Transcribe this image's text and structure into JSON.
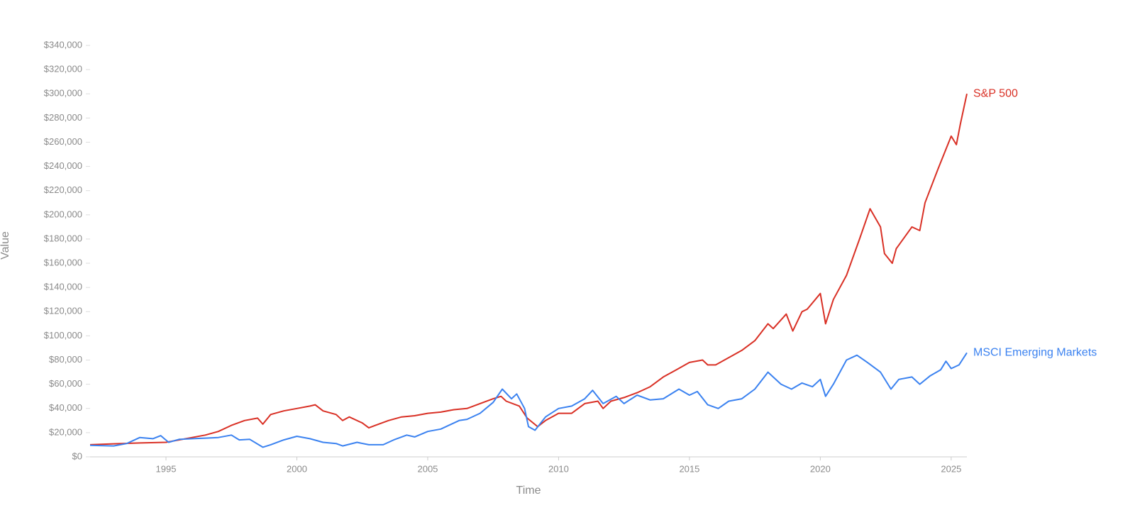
{
  "chart_data": {
    "type": "line",
    "x_label": "Time",
    "y_label": "Value",
    "xlim": [
      1992.1,
      2025.6
    ],
    "ylim": [
      0,
      340000
    ],
    "xticks": [
      1995,
      2000,
      2005,
      2010,
      2015,
      2020,
      2025
    ],
    "yticks": [
      {
        "value": 0,
        "label": "$0"
      },
      {
        "value": 20000,
        "label": "$20,000"
      },
      {
        "value": 40000,
        "label": "$40,000"
      },
      {
        "value": 60000,
        "label": "$60,000"
      },
      {
        "value": 80000,
        "label": "$80,000"
      },
      {
        "value": 100000,
        "label": "$100,000"
      },
      {
        "value": 120000,
        "label": "$120,000"
      },
      {
        "value": 140000,
        "label": "$140,000"
      },
      {
        "value": 160000,
        "label": "$160,000"
      },
      {
        "value": 180000,
        "label": "$180,000"
      },
      {
        "value": 200000,
        "label": "$200,000"
      },
      {
        "value": 220000,
        "label": "$220,000"
      },
      {
        "value": 240000,
        "label": "$240,000"
      },
      {
        "value": 260000,
        "label": "$260,000"
      },
      {
        "value": 280000,
        "label": "$280,000"
      },
      {
        "value": 300000,
        "label": "$300,000"
      },
      {
        "value": 320000,
        "label": "$320,000"
      },
      {
        "value": 340000,
        "label": "$340,000"
      }
    ],
    "grid": false,
    "series": [
      {
        "name": "S&P 500",
        "color": "#d93025",
        "x": [
          1992.1,
          1993,
          1994,
          1995,
          1995.5,
          1996,
          1996.5,
          1997,
          1997.5,
          1998,
          1998.5,
          1998.7,
          1999,
          1999.5,
          2000,
          2000.5,
          2000.7,
          2001,
          2001.5,
          2001.75,
          2002,
          2002.5,
          2002.75,
          2003,
          2003.5,
          2004,
          2004.5,
          2005,
          2005.5,
          2006,
          2006.5,
          2007,
          2007.5,
          2007.8,
          2008,
          2008.5,
          2008.8,
          2009.2,
          2009.5,
          2010,
          2010.5,
          2011,
          2011.5,
          2011.7,
          2012,
          2012.5,
          2013,
          2013.5,
          2014,
          2014.5,
          2015,
          2015.5,
          2015.7,
          2016,
          2016.5,
          2017,
          2017.5,
          2018,
          2018.2,
          2018.7,
          2018.95,
          2019.3,
          2019.5,
          2020,
          2020.2,
          2020.5,
          2021,
          2021.5,
          2021.9,
          2022.3,
          2022.45,
          2022.75,
          2022.9,
          2023.5,
          2023.8,
          2024,
          2024.5,
          2025,
          2025.2,
          2025.35,
          2025.6
        ],
        "values": [
          10000,
          10800,
          11500,
          12000,
          14000,
          16000,
          18000,
          21000,
          26000,
          30000,
          32000,
          27000,
          35000,
          38000,
          40000,
          42000,
          43000,
          38000,
          35000,
          30000,
          33000,
          28000,
          24000,
          26000,
          30000,
          33000,
          34000,
          36000,
          37000,
          39000,
          40000,
          44000,
          48000,
          50000,
          46000,
          42000,
          32000,
          25000,
          30000,
          36000,
          36000,
          44000,
          46000,
          40000,
          46000,
          49000,
          53000,
          58000,
          66000,
          72000,
          78000,
          80000,
          76000,
          76000,
          82000,
          88000,
          96000,
          110000,
          106000,
          118000,
          104000,
          120000,
          122000,
          135000,
          110000,
          130000,
          150000,
          180000,
          205000,
          190000,
          168000,
          160000,
          172000,
          190000,
          187000,
          210000,
          238000,
          265000,
          258000,
          275000,
          300000
        ]
      },
      {
        "name": "MSCI Emerging Markets",
        "color": "#3b82f0",
        "x": [
          1992.1,
          1993,
          1993.5,
          1994,
          1994.5,
          1994.8,
          1995.1,
          1995.5,
          1996,
          1996.5,
          1997,
          1997.5,
          1997.8,
          1998.2,
          1998.7,
          1999,
          1999.5,
          2000,
          2000.5,
          2001,
          2001.5,
          2001.75,
          2002.3,
          2002.75,
          2003.3,
          2003.7,
          2004.2,
          2004.5,
          2005,
          2005.5,
          2006.2,
          2006.5,
          2007,
          2007.5,
          2007.85,
          2008.2,
          2008.4,
          2008.7,
          2008.85,
          2009.1,
          2009.5,
          2010,
          2010.5,
          2011,
          2011.3,
          2011.7,
          2012.2,
          2012.5,
          2013,
          2013.5,
          2014,
          2014.6,
          2015,
          2015.3,
          2015.7,
          2016.1,
          2016.5,
          2017,
          2017.5,
          2018,
          2018.5,
          2018.9,
          2019.3,
          2019.7,
          2020,
          2020.2,
          2020.5,
          2021,
          2021.4,
          2021.8,
          2022.3,
          2022.7,
          2023,
          2023.5,
          2023.8,
          2024.2,
          2024.6,
          2024.8,
          2025,
          2025.3,
          2025.6
        ],
        "values": [
          9500,
          9000,
          11000,
          16000,
          15000,
          17500,
          12000,
          14500,
          15000,
          15500,
          16000,
          18000,
          14000,
          14500,
          8000,
          10000,
          14000,
          17000,
          15000,
          12000,
          11000,
          9000,
          12000,
          10000,
          10000,
          14000,
          18000,
          16500,
          21000,
          23000,
          30000,
          31000,
          36000,
          45000,
          56000,
          48000,
          52000,
          40000,
          25000,
          22000,
          33000,
          40000,
          42000,
          48000,
          55000,
          44000,
          50000,
          44000,
          51000,
          47000,
          48000,
          56000,
          51000,
          54000,
          43000,
          40000,
          46000,
          48000,
          56000,
          70000,
          60000,
          56000,
          61000,
          58000,
          64000,
          50000,
          60000,
          80000,
          84000,
          78000,
          70000,
          56000,
          64000,
          66000,
          60000,
          67000,
          72000,
          79000,
          73000,
          76000,
          86000
        ]
      }
    ]
  }
}
